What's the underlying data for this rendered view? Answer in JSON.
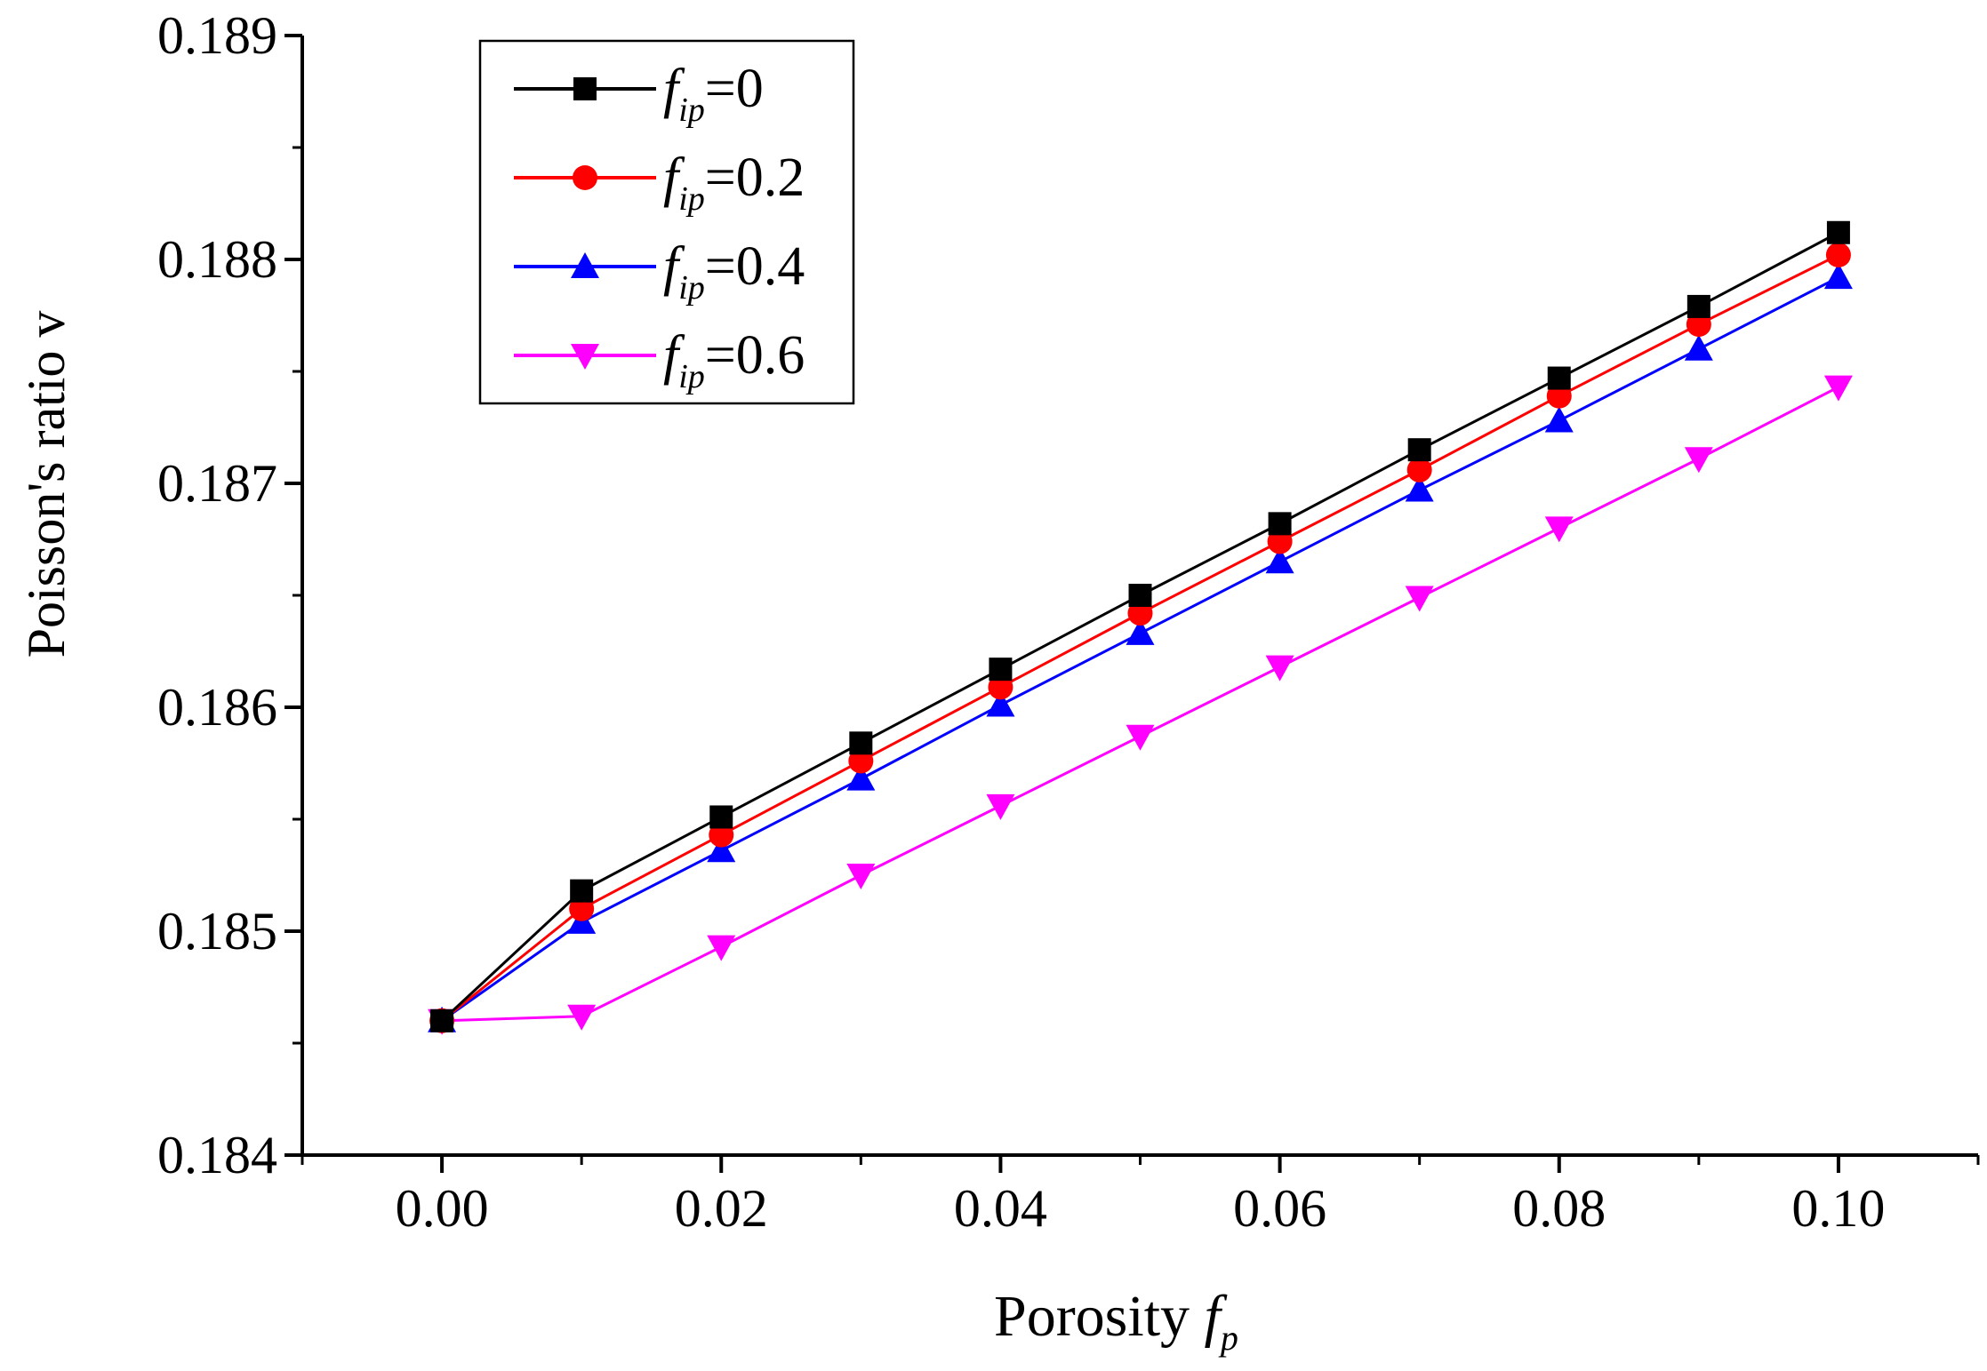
{
  "chart_data": {
    "type": "line",
    "title": "",
    "xlabel": {
      "prefix": "Porosity ",
      "var": "f",
      "sub": "p"
    },
    "ylabel": "Poisson's ratio v",
    "xlim": [
      -0.01,
      0.11
    ],
    "ylim": [
      0.184,
      0.189
    ],
    "x": [
      0,
      0.01,
      0.02,
      0.03,
      0.04,
      0.05,
      0.06,
      0.07,
      0.08,
      0.09,
      0.1
    ],
    "x_ticks": [
      0,
      0.02,
      0.04,
      0.06,
      0.08,
      0.1
    ],
    "x_tick_labels": [
      "0.00",
      "0.02",
      "0.04",
      "0.06",
      "0.08",
      "0.10"
    ],
    "x_minor_ticks": [
      -0.01,
      0.01,
      0.03,
      0.05,
      0.07,
      0.09,
      0.11
    ],
    "y_ticks": [
      0.184,
      0.185,
      0.186,
      0.187,
      0.188,
      0.189
    ],
    "y_tick_labels": [
      "0.184",
      "0.185",
      "0.186",
      "0.187",
      "0.188",
      "0.189"
    ],
    "y_minor_ticks": [
      0.1845,
      0.1855,
      0.1865,
      0.1875,
      0.1885
    ],
    "legend_position": "top-left",
    "series": [
      {
        "name": "f_ip=0",
        "var": "f",
        "sub": "ip",
        "eq": "=0",
        "color": "#000000",
        "marker": "square",
        "values": [
          0.1846,
          0.18518,
          0.18551,
          0.18584,
          0.18617,
          0.1865,
          0.18682,
          0.18715,
          0.18747,
          0.18779,
          0.18812
        ]
      },
      {
        "name": "f_ip=0.2",
        "var": "f",
        "sub": "ip",
        "eq": "=0.2",
        "color": "#ff0000",
        "marker": "circle",
        "values": [
          0.1846,
          0.1851,
          0.18543,
          0.18576,
          0.18609,
          0.18642,
          0.18674,
          0.18706,
          0.18739,
          0.18771,
          0.18802
        ]
      },
      {
        "name": "f_ip=0.4",
        "var": "f",
        "sub": "ip",
        "eq": "=0.4",
        "color": "#0000ff",
        "marker": "triangle-up",
        "values": [
          0.1846,
          0.18504,
          0.18536,
          0.18568,
          0.18601,
          0.18633,
          0.18665,
          0.18697,
          0.18728,
          0.1876,
          0.18792
        ]
      },
      {
        "name": "f_ip=0.6",
        "var": "f",
        "sub": "ip",
        "eq": "=0.6",
        "color": "#ff00ff",
        "marker": "triangle-down",
        "values": [
          0.1846,
          0.18462,
          0.18493,
          0.18525,
          0.18556,
          0.18587,
          0.18618,
          0.18649,
          0.1868,
          0.18711,
          0.18743
        ]
      }
    ]
  }
}
